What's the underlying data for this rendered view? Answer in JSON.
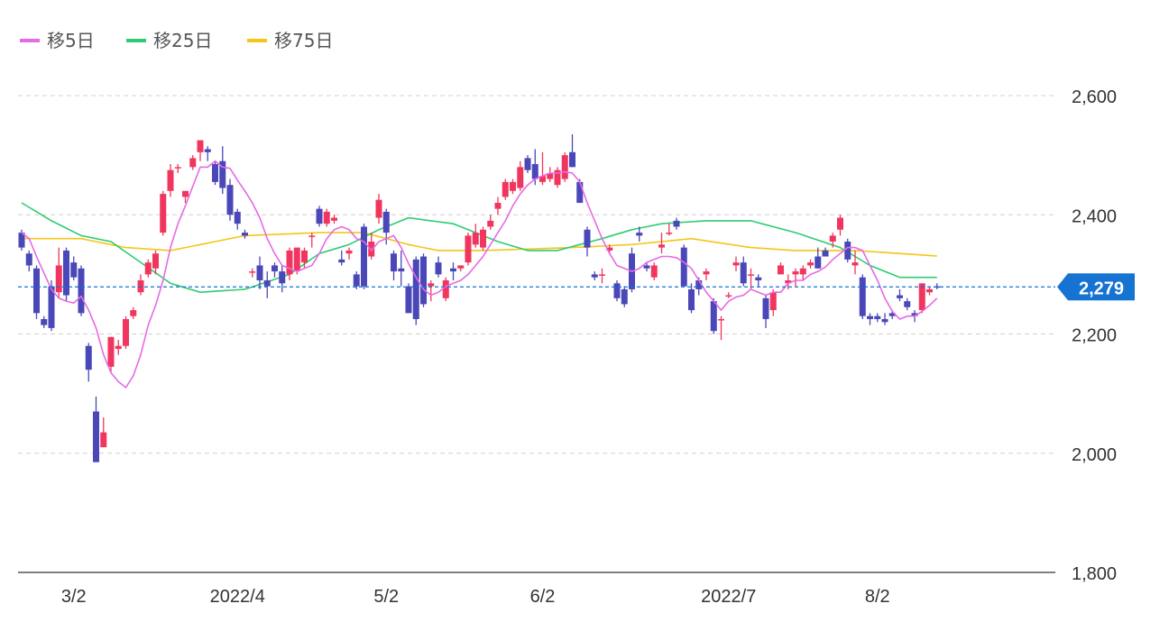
{
  "chart_data": {
    "type": "candlestick",
    "colors": {
      "up": "#f0365e",
      "down": "#4a47b8",
      "ma5": "#e66ae6",
      "ma25": "#2ecc71",
      "ma75": "#f5c518",
      "current": "#1673d1",
      "grid": "#d0d0d0"
    },
    "legend": [
      {
        "name": "移5日",
        "color": "#e66ae6"
      },
      {
        "name": "移25日",
        "color": "#2ecc71"
      },
      {
        "name": "移75日",
        "color": "#f5c518"
      }
    ],
    "legend_position": "top-left",
    "y_axis": {
      "range": [
        1800,
        2600
      ],
      "ticks": [
        "2,600",
        "2,400",
        "2,200",
        "2,000",
        "1,800"
      ],
      "tick_values": [
        2600,
        2400,
        2200,
        2000,
        1800
      ],
      "position": "right",
      "grid": true
    },
    "x_axis": {
      "labels": [
        "3/2",
        "2022/4",
        "5/2",
        "6/2",
        "2022/7",
        "8/2"
      ],
      "label_indices": [
        7,
        29,
        49,
        70,
        95,
        115
      ]
    },
    "current_price": {
      "value": 2279,
      "label": "2,279"
    },
    "candles": [
      [
        2370,
        2375,
        2340,
        2345
      ],
      [
        2335,
        2340,
        2305,
        2315
      ],
      [
        2310,
        2315,
        2225,
        2235
      ],
      [
        2225,
        2230,
        2210,
        2215
      ],
      [
        2280,
        2290,
        2205,
        2210
      ],
      [
        2270,
        2345,
        2260,
        2315
      ],
      [
        2340,
        2345,
        2255,
        2265
      ],
      [
        2320,
        2330,
        2290,
        2295
      ],
      [
        2310,
        2315,
        2230,
        2235
      ],
      [
        2180,
        2185,
        2120,
        2140
      ],
      [
        2070,
        2095,
        1985,
        1985
      ],
      [
        2010,
        2060,
        2010,
        2035
      ],
      [
        2145,
        2195,
        2135,
        2195
      ],
      [
        2175,
        2190,
        2165,
        2180
      ],
      [
        2180,
        2230,
        2175,
        2225
      ],
      [
        2230,
        2245,
        2225,
        2240
      ],
      [
        2270,
        2300,
        2265,
        2290
      ],
      [
        2300,
        2325,
        2295,
        2320
      ],
      [
        2310,
        2340,
        2300,
        2335
      ],
      [
        2370,
        2440,
        2365,
        2435
      ],
      [
        2440,
        2485,
        2430,
        2475
      ],
      [
        2480,
        2485,
        2470,
        2480
      ],
      [
        2430,
        2440,
        2420,
        2440
      ],
      [
        2480,
        2500,
        2475,
        2495
      ],
      [
        2505,
        2525,
        2490,
        2525
      ],
      [
        2510,
        2515,
        2490,
        2505
      ],
      [
        2485,
        2490,
        2450,
        2455
      ],
      [
        2490,
        2515,
        2435,
        2445
      ],
      [
        2450,
        2460,
        2390,
        2400
      ],
      [
        2405,
        2410,
        2375,
        2385
      ],
      [
        2370,
        2375,
        2360,
        2365
      ],
      [
        2305,
        2310,
        2295,
        2305
      ],
      [
        2315,
        2330,
        2275,
        2290
      ],
      [
        2290,
        2305,
        2260,
        2280
      ],
      [
        2315,
        2320,
        2295,
        2305
      ],
      [
        2305,
        2315,
        2270,
        2285
      ],
      [
        2300,
        2345,
        2290,
        2340
      ],
      [
        2305,
        2345,
        2300,
        2345
      ],
      [
        2320,
        2345,
        2310,
        2340
      ],
      [
        2365,
        2370,
        2345,
        2365
      ],
      [
        2410,
        2415,
        2380,
        2385
      ],
      [
        2385,
        2410,
        2380,
        2405
      ],
      [
        2390,
        2400,
        2385,
        2395
      ],
      [
        2325,
        2340,
        2315,
        2320
      ],
      [
        2335,
        2345,
        2325,
        2340
      ],
      [
        2300,
        2305,
        2275,
        2280
      ],
      [
        2380,
        2385,
        2275,
        2280
      ],
      [
        2330,
        2370,
        2325,
        2355
      ],
      [
        2395,
        2435,
        2385,
        2425
      ],
      [
        2405,
        2410,
        2350,
        2370
      ],
      [
        2335,
        2340,
        2290,
        2305
      ],
      [
        2310,
        2340,
        2280,
        2305
      ],
      [
        2280,
        2285,
        2240,
        2235
      ],
      [
        2325,
        2330,
        2215,
        2225
      ],
      [
        2330,
        2335,
        2245,
        2250
      ],
      [
        2280,
        2290,
        2255,
        2285
      ],
      [
        2320,
        2330,
        2295,
        2300
      ],
      [
        2260,
        2295,
        2255,
        2290
      ],
      [
        2310,
        2320,
        2290,
        2305
      ],
      [
        2310,
        2315,
        2305,
        2315
      ],
      [
        2320,
        2370,
        2315,
        2365
      ],
      [
        2350,
        2385,
        2345,
        2370
      ],
      [
        2345,
        2380,
        2340,
        2375
      ],
      [
        2380,
        2400,
        2375,
        2390
      ],
      [
        2410,
        2430,
        2400,
        2420
      ],
      [
        2430,
        2460,
        2425,
        2455
      ],
      [
        2440,
        2460,
        2435,
        2455
      ],
      [
        2445,
        2490,
        2440,
        2480
      ],
      [
        2495,
        2500,
        2470,
        2475
      ],
      [
        2485,
        2510,
        2450,
        2460
      ],
      [
        2455,
        2505,
        2450,
        2465
      ],
      [
        2460,
        2480,
        2455,
        2470
      ],
      [
        2450,
        2480,
        2445,
        2475
      ],
      [
        2460,
        2505,
        2455,
        2500
      ],
      [
        2505,
        2535,
        2480,
        2480
      ],
      [
        2455,
        2460,
        2420,
        2420
      ],
      [
        2375,
        2380,
        2330,
        2345
      ],
      [
        2300,
        2305,
        2290,
        2295
      ],
      [
        2300,
        2310,
        2285,
        2300
      ],
      [
        2340,
        2350,
        2335,
        2345
      ],
      [
        2285,
        2290,
        2255,
        2260
      ],
      [
        2275,
        2280,
        2245,
        2250
      ],
      [
        2335,
        2345,
        2270,
        2275
      ],
      [
        2370,
        2380,
        2355,
        2365
      ],
      [
        2315,
        2320,
        2305,
        2310
      ],
      [
        2295,
        2320,
        2290,
        2315
      ],
      [
        2345,
        2370,
        2335,
        2350
      ],
      [
        2370,
        2385,
        2365,
        2370
      ],
      [
        2390,
        2395,
        2375,
        2380
      ],
      [
        2345,
        2350,
        2280,
        2280
      ],
      [
        2275,
        2285,
        2235,
        2240
      ],
      [
        2290,
        2295,
        2265,
        2275
      ],
      [
        2300,
        2310,
        2290,
        2305
      ],
      [
        2255,
        2260,
        2200,
        2205
      ],
      [
        2225,
        2230,
        2190,
        2225
      ],
      [
        2265,
        2270,
        2260,
        2265
      ],
      [
        2315,
        2330,
        2305,
        2320
      ],
      [
        2320,
        2330,
        2280,
        2285
      ],
      [
        2300,
        2310,
        2275,
        2300
      ],
      [
        2295,
        2300,
        2280,
        2290
      ],
      [
        2260,
        2265,
        2210,
        2225
      ],
      [
        2240,
        2275,
        2230,
        2270
      ],
      [
        2300,
        2320,
        2300,
        2315
      ],
      [
        2285,
        2300,
        2275,
        2290
      ],
      [
        2300,
        2310,
        2280,
        2305
      ],
      [
        2300,
        2315,
        2290,
        2310
      ],
      [
        2315,
        2325,
        2310,
        2320
      ],
      [
        2330,
        2345,
        2310,
        2310
      ],
      [
        2340,
        2345,
        2330,
        2330
      ],
      [
        2355,
        2370,
        2345,
        2365
      ],
      [
        2375,
        2400,
        2365,
        2395
      ],
      [
        2355,
        2360,
        2320,
        2325
      ],
      [
        2315,
        2340,
        2300,
        2320
      ],
      [
        2295,
        2300,
        2225,
        2230
      ],
      [
        2230,
        2235,
        2215,
        2225
      ],
      [
        2230,
        2235,
        2220,
        2225
      ],
      [
        2225,
        2235,
        2215,
        2220
      ],
      [
        2235,
        2240,
        2225,
        2230
      ],
      [
        2265,
        2275,
        2255,
        2260
      ],
      [
        2255,
        2260,
        2240,
        2245
      ],
      [
        2235,
        2240,
        2220,
        2230
      ],
      [
        2240,
        2285,
        2235,
        2285
      ],
      [
        2270,
        2280,
        2265,
        2275
      ],
      [
        2280,
        2285,
        2275,
        2279
      ]
    ],
    "ma5": [
      2370,
      2360,
      2330,
      2302,
      2275,
      2260,
      2255,
      2252,
      2263,
      2240,
      2210,
      2165,
      2135,
      2120,
      2110,
      2130,
      2165,
      2215,
      2248,
      2290,
      2345,
      2385,
      2415,
      2448,
      2480,
      2480,
      2490,
      2480,
      2478,
      2458,
      2440,
      2420,
      2395,
      2360,
      2335,
      2315,
      2310,
      2305,
      2310,
      2315,
      2335,
      2360,
      2375,
      2380,
      2375,
      2360,
      2355,
      2340,
      2355,
      2360,
      2365,
      2345,
      2318,
      2295,
      2275,
      2265,
      2270,
      2280,
      2285,
      2290,
      2300,
      2315,
      2330,
      2350,
      2370,
      2390,
      2415,
      2435,
      2450,
      2460,
      2465,
      2470,
      2470,
      2472,
      2470,
      2455,
      2420,
      2390,
      2360,
      2335,
      2315,
      2310,
      2305,
      2310,
      2320,
      2325,
      2330,
      2330,
      2328,
      2320,
      2310,
      2290,
      2270,
      2255,
      2240,
      2255,
      2262,
      2265,
      2275,
      2270,
      2265,
      2270,
      2270,
      2285,
      2290,
      2290,
      2300,
      2305,
      2312,
      2325,
      2335,
      2345,
      2345,
      2340,
      2315,
      2290,
      2260,
      2238,
      2225,
      2230,
      2230,
      2238,
      2248,
      2260,
      2265
    ]
  }
}
